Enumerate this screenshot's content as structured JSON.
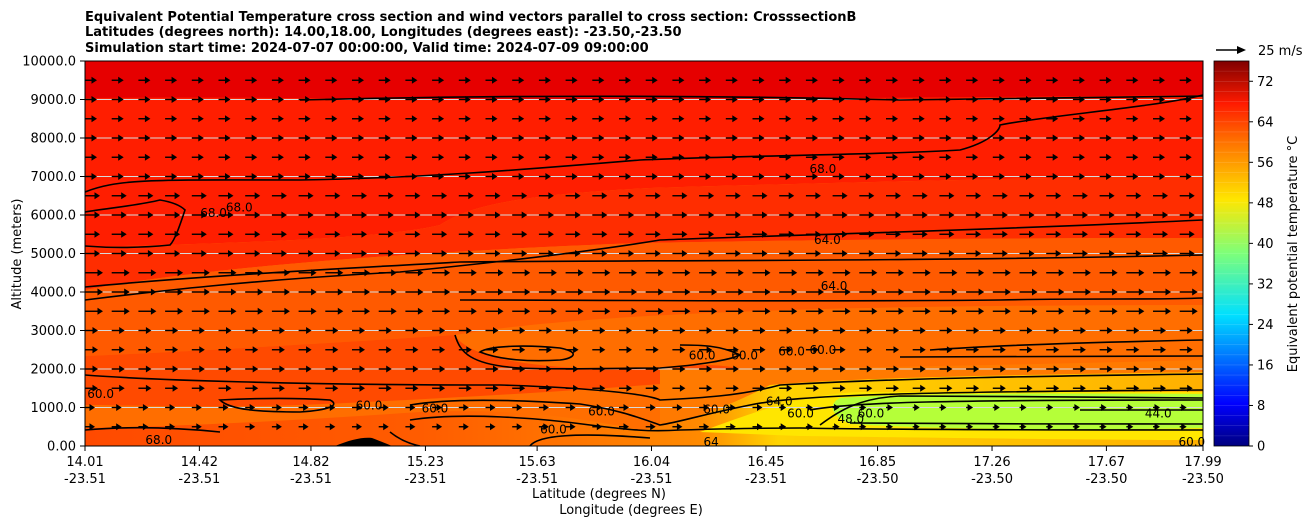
{
  "chart_data": {
    "type": "heatmap",
    "title_lines": [
      "Equivalent Potential Temperature cross section and wind vectors parallel to cross section: CrosssectionB",
      "Latitudes (degrees north): 14.00,18.00, Longitudes (degrees east): -23.50,-23.50",
      "Simulation start time: 2024-07-07 00:00:00, Valid time: 2024-07-09 09:00:00"
    ],
    "xlabel": "Latitude (degrees N)",
    "xlabel2": "Longitude (degrees E)",
    "ylabel": "Altitude (meters)",
    "ylim": [
      0,
      10000
    ],
    "y_ticks": [
      "0.00",
      "1000.0",
      "2000.0",
      "3000.0",
      "4000.0",
      "5000.0",
      "6000.0",
      "7000.0",
      "8000.0",
      "9000.0",
      "10000.0"
    ],
    "x_ticks": [
      {
        "lat": "14.01",
        "lon": "-23.51",
        "pos": 0.0
      },
      {
        "lat": "14.42",
        "lon": "-23.51",
        "pos": 0.1023
      },
      {
        "lat": "14.82",
        "lon": "-23.51",
        "pos": 0.2021
      },
      {
        "lat": "15.23",
        "lon": "-23.51",
        "pos": 0.3045
      },
      {
        "lat": "15.63",
        "lon": "-23.51",
        "pos": 0.4044
      },
      {
        "lat": "16.04",
        "lon": "-23.51",
        "pos": 0.5067
      },
      {
        "lat": "16.45",
        "lon": "-23.51",
        "pos": 0.6091
      },
      {
        "lat": "16.85",
        "lon": "-23.50",
        "pos": 0.7089
      },
      {
        "lat": "17.26",
        "lon": "-23.50",
        "pos": 0.8113
      },
      {
        "lat": "17.67",
        "lon": "-23.50",
        "pos": 0.9136
      },
      {
        "lat": "17.99",
        "lon": "-23.50",
        "pos": 1.0
      }
    ],
    "colorbar": {
      "label": "Equivalent potential temperature °C",
      "vmin": 0,
      "vmax": 76,
      "ticks": [
        0,
        8,
        16,
        24,
        32,
        40,
        48,
        56,
        64,
        72
      ]
    },
    "quiver_key": {
      "label": "25 m/s"
    },
    "contour_labels": [
      {
        "text": "68.0",
        "x": 0.66,
        "z": 7200
      },
      {
        "text": "68.0",
        "x": 0.115,
        "z": 6050
      },
      {
        "text": "68.0",
        "x": 0.138,
        "z": 6200
      },
      {
        "text": "64.0",
        "x": 0.664,
        "z": 5350
      },
      {
        "text": "64.0",
        "x": 0.67,
        "z": 4150
      },
      {
        "text": "60.0",
        "x": 0.66,
        "z": 2500
      },
      {
        "text": "60.0",
        "x": 0.632,
        "z": 2450
      },
      {
        "text": "60.0",
        "x": 0.59,
        "z": 2350
      },
      {
        "text": "60.0",
        "x": 0.552,
        "z": 2350
      },
      {
        "text": "64.0",
        "x": 0.621,
        "z": 1150
      },
      {
        "text": "60.0",
        "x": 0.64,
        "z": 850
      },
      {
        "text": "60.0",
        "x": 0.703,
        "z": 850
      },
      {
        "text": "60.0",
        "x": 0.565,
        "z": 950
      },
      {
        "text": "60.0",
        "x": 0.462,
        "z": 900
      },
      {
        "text": "60.0",
        "x": 0.419,
        "z": 430
      },
      {
        "text": "60.0",
        "x": 0.313,
        "z": 980
      },
      {
        "text": "60.0",
        "x": 0.254,
        "z": 1050
      },
      {
        "text": "60.0",
        "x": 0.014,
        "z": 1350
      },
      {
        "text": "68.0",
        "x": 0.066,
        "z": 150
      },
      {
        "text": "64",
        "x": 0.56,
        "z": 100
      },
      {
        "text": "48.0",
        "x": 0.685,
        "z": 700
      },
      {
        "text": "44.0",
        "x": 0.96,
        "z": 850
      },
      {
        "text": "60.0",
        "x": 0.99,
        "z": 100
      }
    ]
  }
}
